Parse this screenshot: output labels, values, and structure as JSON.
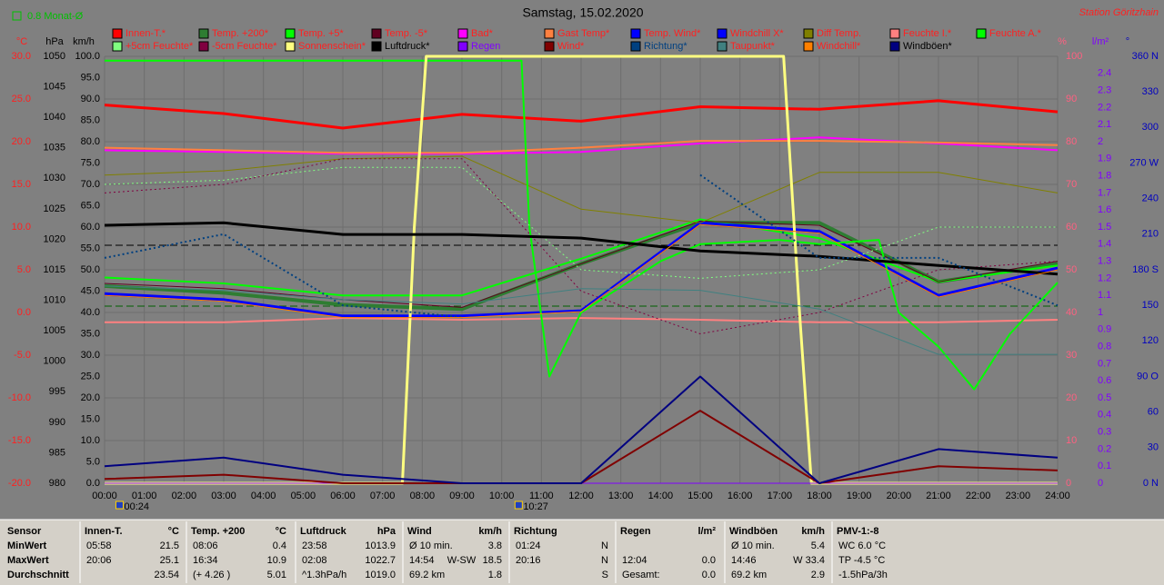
{
  "chart_data": {
    "type": "line",
    "title": "Samstag, 15.02.2020",
    "station": "Station Göritzhain",
    "period_label": "0.8 Monat-Ø",
    "grid": true,
    "xlim": [
      0,
      24
    ],
    "xticks": [
      {
        "value": 0,
        "label": "00:00"
      },
      {
        "value": 1,
        "label": "01:00"
      },
      {
        "value": 2,
        "label": "02:00"
      },
      {
        "value": 3,
        "label": "03:00"
      },
      {
        "value": 4,
        "label": "04:00"
      },
      {
        "value": 5,
        "label": "05:00"
      },
      {
        "value": 6,
        "label": "06:00"
      },
      {
        "value": 7,
        "label": "07:00"
      },
      {
        "value": 8,
        "label": "08:00"
      },
      {
        "value": 9,
        "label": "09:00"
      },
      {
        "value": 10,
        "label": "10:00"
      },
      {
        "value": 11,
        "label": "11:00"
      },
      {
        "value": 12,
        "label": "12:00"
      },
      {
        "value": 13,
        "label": "13:00"
      },
      {
        "value": 14,
        "label": "14:00"
      },
      {
        "value": 15,
        "label": "15:00"
      },
      {
        "value": 16,
        "label": "16:00"
      },
      {
        "value": 17,
        "label": "17:00"
      },
      {
        "value": 18,
        "label": "18:00"
      },
      {
        "value": 19,
        "label": "19:00"
      },
      {
        "value": 20,
        "label": "20:00"
      },
      {
        "value": 21,
        "label": "21:00"
      },
      {
        "value": 22,
        "label": "22:00"
      },
      {
        "value": 23,
        "label": "23:00"
      },
      {
        "value": 24,
        "label": "24:00"
      }
    ],
    "axes": {
      "temp": {
        "label": "°C",
        "color": "#ff2020",
        "side": "left",
        "lim": [
          -20,
          30
        ],
        "ticks": [
          {
            "value": -20,
            "label": "-20.0"
          },
          {
            "value": -15,
            "label": "-15.0"
          },
          {
            "value": -10,
            "label": "-10.0"
          },
          {
            "value": -5,
            "label": "-5.0"
          },
          {
            "value": 0,
            "label": "0.0"
          },
          {
            "value": 5,
            "label": "5.0"
          },
          {
            "value": 10,
            "label": "10.0"
          },
          {
            "value": 15,
            "label": "15.0"
          },
          {
            "value": 20,
            "label": "20.0"
          },
          {
            "value": 25,
            "label": "25.0"
          },
          {
            "value": 30,
            "label": "30.0"
          }
        ]
      },
      "press": {
        "label": "hPa",
        "color": "#000000",
        "side": "left",
        "lim": [
          980,
          1050
        ],
        "ticks": [
          980,
          985,
          990,
          995,
          1000,
          1005,
          1010,
          1015,
          1020,
          1025,
          1030,
          1035,
          1040,
          1045,
          1050
        ]
      },
      "kmh": {
        "label": "km/h",
        "color": "#000000",
        "side": "left",
        "lim": [
          0,
          100
        ],
        "ticks": [
          {
            "value": 0,
            "label": "0.0"
          },
          {
            "value": 5,
            "label": "5.0"
          },
          {
            "value": 10,
            "label": "10.0"
          },
          {
            "value": 15,
            "label": "15.0"
          },
          {
            "value": 20,
            "label": "20.0"
          },
          {
            "value": 25,
            "label": "25.0"
          },
          {
            "value": 30,
            "label": "30.0"
          },
          {
            "value": 35,
            "label": "35.0"
          },
          {
            "value": 40,
            "label": "40.0"
          },
          {
            "value": 45,
            "label": "45.0"
          },
          {
            "value": 50,
            "label": "50.0"
          },
          {
            "value": 55,
            "label": "55.0"
          },
          {
            "value": 60,
            "label": "60.0"
          },
          {
            "value": 65,
            "label": "65.0"
          },
          {
            "value": 70,
            "label": "70.0"
          },
          {
            "value": 75,
            "label": "75.0"
          },
          {
            "value": 80,
            "label": "80.0"
          },
          {
            "value": 85,
            "label": "85.0"
          },
          {
            "value": 90,
            "label": "90.0"
          },
          {
            "value": 95,
            "label": "95.0"
          },
          {
            "value": 100,
            "label": "100.0"
          }
        ]
      },
      "pct": {
        "label": "%",
        "color": "#ff6080",
        "side": "right",
        "lim": [
          0,
          100
        ],
        "ticks": [
          0,
          10,
          20,
          30,
          40,
          50,
          60,
          70,
          80,
          90,
          100
        ]
      },
      "rain": {
        "label": "l/m²",
        "color": "#8000ff",
        "side": "right",
        "lim": [
          0,
          2.5
        ],
        "ticks": [
          0,
          0.1,
          0.2,
          0.3,
          0.4,
          0.5,
          0.6,
          0.7,
          0.8,
          0.9,
          1,
          1.1,
          1.2,
          1.3,
          1.4,
          1.5,
          1.6,
          1.7,
          1.8,
          1.9,
          2,
          2.1,
          2.2,
          2.3,
          2.4
        ]
      },
      "dir": {
        "label": "°",
        "color": "#0000c0",
        "side": "right",
        "lim": [
          0,
          360
        ],
        "ticks": [
          {
            "value": 0,
            "label": "0 N"
          },
          30,
          60,
          {
            "value": 90,
            "label": "90 O"
          },
          120,
          150,
          {
            "value": 180,
            "label": "180 S"
          },
          210,
          240,
          {
            "value": 270,
            "label": "270 W"
          },
          300,
          330,
          {
            "value": 360,
            "label": "360 N"
          }
        ]
      }
    },
    "x": [
      0,
      3,
      6,
      9,
      12,
      15,
      18,
      21,
      24
    ],
    "series": [
      {
        "name": "Innen-T.*",
        "color": "#ff0000",
        "label_color": "#ff2020",
        "axis": "temp",
        "width": 3,
        "values": [
          24.3,
          23.3,
          21.6,
          23.2,
          22.4,
          24.1,
          23.8,
          24.8,
          23.5
        ]
      },
      {
        "name": "Temp. +200*",
        "color": "#2e7d32",
        "label_color": "#ff2020",
        "axis": "temp",
        "width": 4,
        "values": [
          3.1,
          2.3,
          0.9,
          0.4,
          5.7,
          10.5,
          10.5,
          3.6,
          5.7
        ]
      },
      {
        "name": "Temp. +5*",
        "color": "#00ff00",
        "label_color": "#ff2020",
        "axis": "temp",
        "width": 2,
        "values": [
          4.1,
          3.4,
          2.0,
          2.0,
          6.3,
          10.9,
          8.7,
          3.6,
          5.5
        ]
      },
      {
        "name": "Temp. -5*",
        "color": "#600020",
        "label_color": "#ff2020",
        "axis": "temp",
        "width": 1,
        "values": [
          3.4,
          2.8,
          1.5,
          0.6,
          5.7,
          10.7,
          10.2,
          3.6,
          6.0
        ]
      },
      {
        "name": "Bad*",
        "color": "#ff00ff",
        "label_color": "#ff2020",
        "axis": "temp",
        "width": 2,
        "values": [
          19.0,
          18.8,
          18.6,
          18.6,
          18.8,
          19.8,
          20.5,
          19.8,
          19.0
        ]
      },
      {
        "name": "Gast Temp*",
        "color": "#ff8040",
        "label_color": "#ff2020",
        "axis": "temp",
        "width": 2,
        "values": [
          19.3,
          19.0,
          18.7,
          18.7,
          19.3,
          20.1,
          20.1,
          19.9,
          19.6
        ]
      },
      {
        "name": "Temp. Wind*",
        "color": "#0000ff",
        "label_color": "#ff2020",
        "axis": "temp",
        "width": 3,
        "values": [
          2.2,
          1.5,
          -0.4,
          -0.4,
          0.2,
          10.5,
          9.5,
          2.0,
          5.2
        ]
      },
      {
        "name": "Windchill X*",
        "color": "#0000ff",
        "label_color": "#ff2020",
        "axis": "temp",
        "width": 1,
        "values": [
          2.0,
          1.3,
          -0.5,
          -0.4,
          0.1,
          10.3,
          9.3,
          1.8,
          5.0
        ]
      },
      {
        "name": "Diff Temp.",
        "color": "#808000",
        "label_color": "#ff2020",
        "axis": "temp",
        "width": 1,
        "values": [
          16.1,
          16.6,
          18.0,
          18.3,
          12.1,
          10.5,
          16.4,
          16.4,
          14.0
        ]
      },
      {
        "name": "Feuchte I.*",
        "color": "#ff8080",
        "label_color": "#ff2020",
        "axis": "pct",
        "width": 2,
        "values": [
          37.7,
          37.7,
          38.7,
          38.3,
          38.7,
          38.3,
          37.7,
          37.7,
          38.3
        ]
      },
      {
        "name": "Feuchte A.*",
        "color": "#00ff00",
        "label_color": "#ff2020",
        "axis": "pct",
        "width": 2,
        "x": [
          0,
          10.5,
          10.7,
          11.2,
          12,
          13,
          14,
          15,
          17,
          18,
          19.5,
          20,
          21,
          21.9,
          22.8,
          24
        ],
        "values": [
          99,
          99,
          60,
          25,
          40,
          46,
          52,
          56,
          57,
          56,
          57,
          40,
          32,
          22,
          35,
          47
        ]
      },
      {
        "name": "+5cm Feuchte*",
        "color": "#80ff80",
        "label_color": "#ff2020",
        "axis": "pct",
        "width": 1,
        "dash": true,
        "values": [
          70,
          71,
          74,
          74,
          50,
          48,
          50,
          60,
          60
        ]
      },
      {
        "name": "-5cm Feuchte*",
        "color": "#800040",
        "label_color": "#ff2020",
        "axis": "pct",
        "width": 1,
        "dash": true,
        "values": [
          68,
          70,
          76,
          76,
          45,
          35,
          40,
          50,
          52
        ]
      },
      {
        "name": "Sonnenschein*",
        "color": "#ffff80",
        "label_color": "#ff2020",
        "axis": "pct",
        "width": 3,
        "x": [
          0,
          7.5,
          7.8,
          8.1,
          17.1,
          17.5,
          17.8,
          24
        ],
        "values": [
          0,
          0,
          60,
          100,
          100,
          40,
          0,
          0
        ]
      },
      {
        "name": "Luftdruck*",
        "color": "#000000",
        "label_color": "#000000",
        "axis": "press",
        "width": 3,
        "values": [
          1022.3,
          1022.7,
          1020.8,
          1020.8,
          1020.2,
          1018.1,
          1017.2,
          1015.7,
          1014.3
        ]
      },
      {
        "name": "Regen",
        "color": "#8000ff",
        "label_color": "#8000ff",
        "axis": "rain",
        "width": 1,
        "values": [
          0,
          0,
          0,
          0,
          0,
          0,
          0,
          0,
          0
        ]
      },
      {
        "name": "Wind*",
        "color": "#800000",
        "label_color": "#ff2020",
        "axis": "kmh",
        "width": 2,
        "values": [
          1,
          2,
          0,
          0,
          0,
          17,
          0,
          4,
          3
        ]
      },
      {
        "name": "Richtung*",
        "color": "#004080",
        "label_color": "#004080",
        "axis": "dir",
        "width": 2,
        "dash": true,
        "values": [
          190,
          210,
          150,
          140,
          null,
          260,
          190,
          190,
          150
        ]
      },
      {
        "name": "Taupunkt*",
        "color": "#408080",
        "label_color": "#ff2020",
        "axis": "temp",
        "width": 1,
        "values": [
          3.1,
          2.6,
          1.5,
          1.0,
          2.8,
          2.6,
          0.4,
          -4.9,
          -4.9
        ]
      },
      {
        "name": "Windchill*",
        "color": "#ff8000",
        "label_color": "#ff2020",
        "axis": "temp",
        "width": 1,
        "values": [
          2.0,
          1.3,
          -0.6,
          -0.6,
          0.1,
          10.3,
          9.3,
          1.8,
          5.0
        ]
      },
      {
        "name": "Windböen*",
        "color": "#000080",
        "label_color": "#000000",
        "axis": "kmh",
        "width": 2,
        "values": [
          4,
          6,
          2,
          0,
          0,
          25,
          0,
          8,
          6
        ]
      }
    ],
    "markers": [
      {
        "x": 0.4,
        "label": "00:24"
      },
      {
        "x": 10.45,
        "label": "10:27"
      }
    ]
  },
  "table": {
    "groups": [
      {
        "title": "Innen-T.",
        "unit": "°C",
        "rows": [
          [
            "05:58",
            "21.5"
          ],
          [
            "20:06",
            "25.1"
          ],
          [
            "23.54"
          ]
        ]
      },
      {
        "title": "Temp. +200",
        "unit": "°C",
        "rows": [
          [
            "08:06",
            "0.4"
          ],
          [
            "16:34",
            "10.9"
          ],
          [
            "(+ 4.26 )",
            "5.01"
          ]
        ]
      },
      {
        "title": "Luftdruck",
        "unit": "hPa",
        "rows": [
          [
            "23:58",
            "1013.9"
          ],
          [
            "02:08",
            "1022.7"
          ],
          [
            "^1.3hPa/h",
            "1019.0"
          ]
        ]
      },
      {
        "title": "Wind",
        "unit": "km/h",
        "rows": [
          [
            "Ø 10 min.",
            "3.8"
          ],
          [
            "14:54",
            "W-SW",
            "18.5"
          ],
          [
            "69.2 km",
            "1.8"
          ]
        ]
      },
      {
        "title": "Richtung",
        "rows": [
          [
            "01:24",
            "N"
          ],
          [
            "20:16",
            "N"
          ],
          [
            "S"
          ]
        ]
      },
      {
        "title": "Regen",
        "unit": "l/m²",
        "rows": [
          [],
          [
            "12:04",
            "0.0"
          ],
          [
            "Gesamt:",
            "0.0"
          ]
        ]
      },
      {
        "title": "Windböen",
        "unit": "km/h",
        "rows": [
          [
            "Ø 10 min.",
            "5.4"
          ],
          [
            "14:46",
            "W 33.4"
          ],
          [
            "69.2 km",
            "2.9"
          ]
        ]
      },
      {
        "title": "PMV-1:-8",
        "rows": [
          [
            "WC 6.0 °C"
          ],
          [
            "TP -4.5 °C"
          ],
          [
            "-1.5hPa/3h"
          ]
        ]
      }
    ],
    "row_headers": [
      "Sensor",
      "MinWert",
      "MaxWert",
      "Durchschnitt"
    ]
  }
}
